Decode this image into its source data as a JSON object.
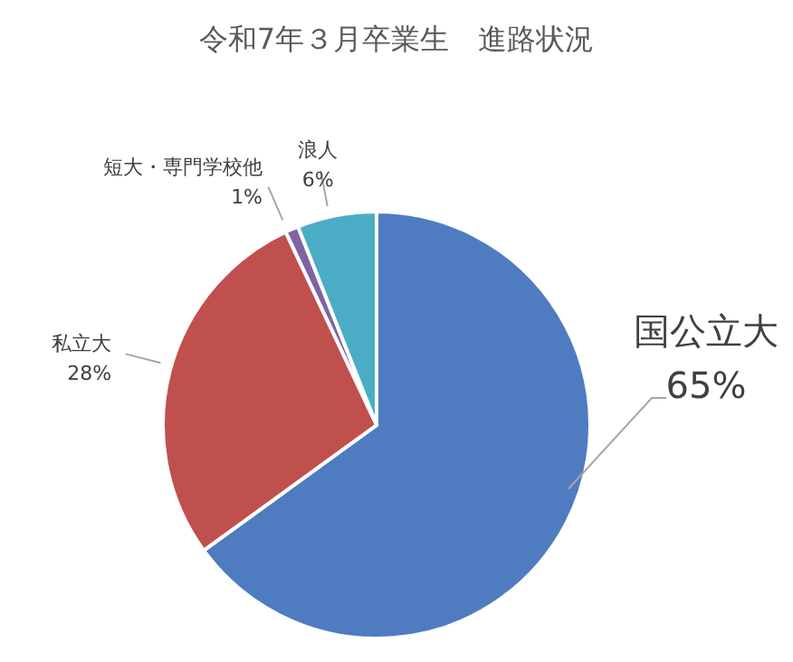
{
  "chart_data": {
    "type": "pie",
    "title": "令和7年３月卒業生　進路状況",
    "categories": [
      "国公立大",
      "私立大",
      "短大・専門学校他",
      "浪人"
    ],
    "values": [
      65,
      28,
      1,
      6
    ],
    "colors": [
      "#4f7cc1",
      "#c0504d",
      "#8064a2",
      "#4bacc6"
    ],
    "value_labels": [
      "65%",
      "28%",
      "1%",
      "6%"
    ]
  }
}
